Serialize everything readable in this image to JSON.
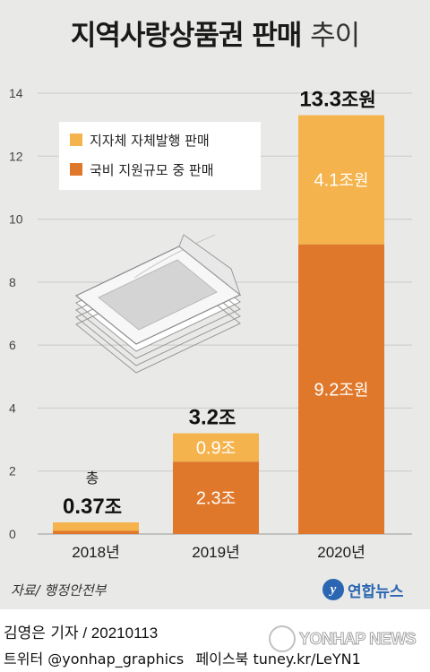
{
  "title": {
    "main": "지역사랑상품권 판매",
    "suffix": "추이"
  },
  "colors": {
    "local": "#f4b34c",
    "national": "#e0782b",
    "background": "#e9e9e7",
    "agency": "#2a66b1"
  },
  "chart_data": {
    "type": "bar",
    "stacked": true,
    "categories": [
      "2018년",
      "2019년",
      "2020년"
    ],
    "series": [
      {
        "name": "국비 지원규모 중 판매",
        "values": [
          0.1,
          2.3,
          9.2
        ],
        "color": "#e0782b",
        "labels": [
          "",
          "2.3조",
          "9.2조원"
        ]
      },
      {
        "name": "지자체 자체발행 판매",
        "values": [
          0.27,
          0.9,
          4.1
        ],
        "color": "#f4b34c",
        "labels": [
          "",
          "0.9조",
          "4.1조원"
        ]
      }
    ],
    "totals": [
      {
        "value": 0.37,
        "prefix": "총",
        "label": "0.37조"
      },
      {
        "value": 3.2,
        "prefix": "",
        "label": "3.2조"
      },
      {
        "value": 13.3,
        "prefix": "",
        "label": "13.3조원"
      }
    ],
    "ylim": [
      0,
      14
    ],
    "yticks": [
      0,
      2,
      4,
      6,
      8,
      10,
      12,
      14
    ],
    "grid": true,
    "legend_position": "top-left"
  },
  "legend": [
    {
      "label": "지자체 자체발행 판매",
      "color": "#f4b34c"
    },
    {
      "label": "국비 지원규모 중 판매",
      "color": "#e0782b"
    }
  ],
  "illustration": {
    "icon": "stack-of-vouchers-icon"
  },
  "source": "자료/ 행정안전부",
  "agency": "연합뉴스",
  "byline": {
    "reporter": "김영은 기자",
    "date": "20210113"
  },
  "social": {
    "twitter": "트위터 @yonhap_graphics",
    "facebook": "페이스북 tuney.kr/LeYN1"
  },
  "watermark": "YONHAP NEWS"
}
